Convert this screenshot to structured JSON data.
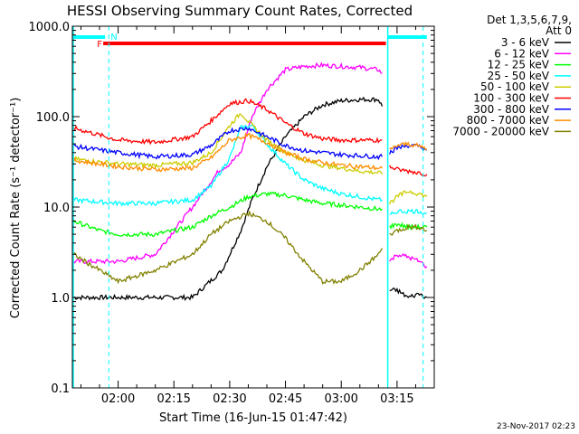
{
  "chart_data": {
    "type": "line",
    "title": "HESSI Observing Summary Count Rates, Corrected",
    "xlabel": "Start Time (16-Jun-15 01:47:42)",
    "ylabel": "Corrected Count Rate (s⁻¹ detector⁻¹)",
    "y_scale": "log",
    "ylim": [
      0.1,
      1000
    ],
    "y_ticks": [
      {
        "value": 0.1,
        "label": "0.1"
      },
      {
        "value": 1,
        "label": "1.0"
      },
      {
        "value": 10,
        "label": "10.0"
      },
      {
        "value": 100,
        "label": "100.0"
      },
      {
        "value": 1000,
        "label": "1000.0"
      }
    ],
    "xlim": [
      "01:47:42",
      "03:25:00"
    ],
    "x_ticks": [
      "02:00",
      "02:15",
      "02:30",
      "02:45",
      "03:00",
      "03:15"
    ],
    "legend": {
      "placement": "right",
      "header": [
        "Det 1,3,5,6,7,9,",
        "Att 0"
      ],
      "entries": [
        "3 - 6 keV",
        "6 - 12 keV",
        "12 - 25 keV",
        "25 - 50 keV",
        "50 - 100 keV",
        "100 - 300 keV",
        "300 - 800 keV",
        "800 - 7000 keV",
        "7000 - 20000 keV"
      ]
    },
    "flags": [
      {
        "label": "F",
        "color": "#ff0000",
        "start": "01:56:00",
        "end": "03:12:00"
      },
      {
        "label": "N",
        "color": "#00ffff",
        "start": "01:47:42",
        "end": "01:56:30"
      },
      {
        "label": "N",
        "color": "#00ffff",
        "start": "03:12:30",
        "end": "03:23:00"
      }
    ],
    "night_boundaries": [
      "01:57:30",
      "03:22:00"
    ],
    "data_gaps": [
      "01:47:42",
      "03:12:30"
    ],
    "colors": {
      "3 - 6 keV": "#000000",
      "6 - 12 keV": "#ff00ff",
      "12 - 25 keV": "#00ff00",
      "25 - 50 keV": "#00ffff",
      "50 - 100 keV": "#cccc00",
      "100 - 300 keV": "#ff0000",
      "300 - 800 keV": "#0000ff",
      "800 - 7000 keV": "#ff8c00",
      "7000 - 20000 keV": "#808000"
    },
    "series": [
      {
        "name": "3 - 6 keV",
        "x": [
          "01:48",
          "02:00",
          "02:10",
          "02:20",
          "02:28",
          "02:33",
          "02:36",
          "02:40",
          "02:45",
          "02:50",
          "02:55",
          "03:00",
          "03:05",
          "03:10",
          "03:11"
        ],
        "values": [
          1.0,
          1.0,
          1.0,
          1.0,
          2.0,
          5.5,
          12,
          28,
          60,
          100,
          135,
          150,
          155,
          155,
          130
        ]
      },
      {
        "name": "6 - 12 keV",
        "x": [
          "01:48",
          "02:00",
          "02:10",
          "02:20",
          "02:27",
          "02:30",
          "02:33",
          "02:36",
          "02:40",
          "02:45",
          "02:50",
          "02:55",
          "03:00",
          "03:05",
          "03:10",
          "03:11"
        ],
        "values": [
          2.5,
          2.5,
          3.0,
          10,
          25,
          30,
          40,
          100,
          200,
          330,
          360,
          370,
          360,
          350,
          330,
          300
        ]
      },
      {
        "name": "12 - 25 keV",
        "x": [
          "01:48",
          "01:55",
          "02:00",
          "02:10",
          "02:20",
          "02:25",
          "02:30",
          "02:35",
          "02:40",
          "02:45",
          "02:50",
          "02:55",
          "03:00",
          "03:05",
          "03:10",
          "03:11"
        ],
        "values": [
          7,
          5.5,
          5,
          5,
          6,
          8,
          10,
          13,
          14,
          13.5,
          12,
          11,
          10.5,
          10,
          9.5,
          9.5
        ]
      },
      {
        "name": "25 - 50 keV",
        "x": [
          "01:48",
          "02:00",
          "02:10",
          "02:20",
          "02:25",
          "02:30",
          "02:33",
          "02:36",
          "02:40",
          "02:45",
          "02:50",
          "02:55",
          "03:00",
          "03:05",
          "03:10",
          "03:11"
        ],
        "values": [
          12,
          11,
          11,
          12,
          17,
          35,
          75,
          80,
          50,
          30,
          20,
          16,
          14,
          13,
          12,
          12
        ]
      },
      {
        "name": "50 - 100 keV",
        "x": [
          "01:48",
          "02:00",
          "02:10",
          "02:20",
          "02:25",
          "02:30",
          "02:33",
          "02:36",
          "02:40",
          "02:45",
          "02:50",
          "02:55",
          "03:00",
          "03:05",
          "03:10",
          "03:11"
        ],
        "values": [
          34,
          30,
          29,
          31,
          40,
          80,
          110,
          80,
          55,
          40,
          33,
          29,
          27,
          25,
          24,
          23
        ]
      },
      {
        "name": "100 - 300 keV",
        "x": [
          "01:48",
          "02:00",
          "02:10",
          "02:20",
          "02:25",
          "02:30",
          "02:35",
          "02:40",
          "02:45",
          "02:50",
          "02:55",
          "03:00",
          "03:05",
          "03:10",
          "03:11"
        ],
        "values": [
          75,
          55,
          52,
          60,
          90,
          140,
          150,
          120,
          85,
          65,
          57,
          55,
          55,
          55,
          55
        ]
      },
      {
        "name": "300 - 800 keV",
        "x": [
          "01:48",
          "02:00",
          "02:10",
          "02:20",
          "02:25",
          "02:30",
          "02:35",
          "02:40",
          "02:45",
          "02:50",
          "02:55",
          "03:00",
          "03:05",
          "03:10",
          "03:11"
        ],
        "values": [
          47,
          40,
          36,
          38,
          48,
          70,
          75,
          60,
          48,
          42,
          40,
          38,
          37,
          36,
          36
        ]
      },
      {
        "name": "800 - 7000 keV",
        "x": [
          "01:48",
          "02:00",
          "02:10",
          "02:20",
          "02:25",
          "02:30",
          "02:35",
          "02:40",
          "02:45",
          "02:50",
          "02:55",
          "03:00",
          "03:05",
          "03:10",
          "03:11"
        ],
        "values": [
          33,
          28,
          26,
          27,
          35,
          55,
          62,
          52,
          40,
          34,
          31,
          29,
          28,
          27,
          27
        ]
      },
      {
        "name": "7000 - 20000 keV",
        "x": [
          "01:48",
          "02:00",
          "02:10",
          "02:20",
          "02:25",
          "02:30",
          "02:35",
          "02:40",
          "02:45",
          "02:50",
          "02:55",
          "03:00",
          "03:05",
          "03:10",
          "03:11"
        ],
        "values": [
          3,
          1.5,
          2,
          3,
          5,
          7,
          8.5,
          7,
          4.5,
          2.5,
          1.5,
          1.5,
          2,
          3,
          3.5
        ]
      },
      {
        "name": "3 - 6 keV",
        "x": [
          "03:13",
          "03:15",
          "03:18",
          "03:21",
          "03:23"
        ],
        "values": [
          1.2,
          1.2,
          1.0,
          1.1,
          1.0
        ]
      },
      {
        "name": "6 - 12 keV",
        "x": [
          "03:13",
          "03:15",
          "03:18",
          "03:21",
          "03:23"
        ],
        "values": [
          2.5,
          3,
          2.8,
          2.5,
          2.2
        ]
      },
      {
        "name": "12 - 25 keV",
        "x": [
          "03:13",
          "03:15",
          "03:18",
          "03:21",
          "03:23"
        ],
        "values": [
          6,
          6.5,
          6,
          6,
          6
        ]
      },
      {
        "name": "25 - 50 keV",
        "x": [
          "03:13",
          "03:15",
          "03:18",
          "03:21",
          "03:23"
        ],
        "values": [
          8,
          9,
          9,
          9,
          8.5
        ]
      },
      {
        "name": "50 - 100 keV",
        "x": [
          "03:13",
          "03:15",
          "03:18",
          "03:21",
          "03:23"
        ],
        "values": [
          11,
          13,
          15,
          14,
          13
        ]
      },
      {
        "name": "100 - 300 keV",
        "x": [
          "03:13",
          "03:15",
          "03:18",
          "03:21",
          "03:23"
        ],
        "values": [
          28,
          26,
          25,
          24,
          23
        ]
      },
      {
        "name": "300 - 800 keV",
        "x": [
          "03:13",
          "03:15",
          "03:18",
          "03:21",
          "03:23"
        ],
        "values": [
          40,
          45,
          48,
          47,
          43
        ]
      },
      {
        "name": "800 - 7000 keV",
        "x": [
          "03:13",
          "03:15",
          "03:18",
          "03:21",
          "03:23"
        ],
        "values": [
          42,
          48,
          50,
          47,
          44
        ]
      },
      {
        "name": "7000 - 20000 keV",
        "x": [
          "03:13",
          "03:15",
          "03:18",
          "03:21",
          "03:23"
        ],
        "values": [
          5,
          5.5,
          6,
          6,
          5.5
        ]
      }
    ]
  },
  "footer": {
    "date": "23-Nov-2017 02:23"
  }
}
